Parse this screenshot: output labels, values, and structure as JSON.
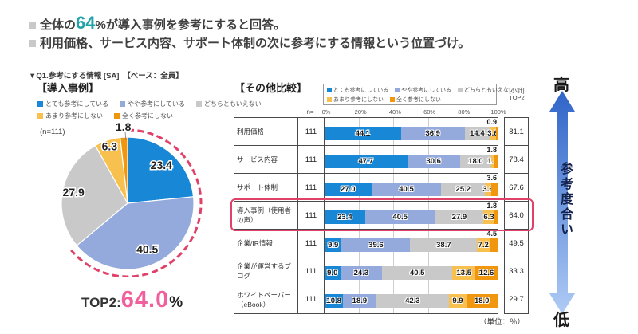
{
  "header": {
    "line1_pre": "全体の",
    "line1_highlight": "64",
    "line1_post": "%が導入事例を参考にすると回答。",
    "line2": "利用価格、サービス内容、サポート体制の次に参考にする情報という位置づけ。",
    "subtitle": "▼Q1.参考にする情報 [SA]　【ベース：全員】"
  },
  "legend_labels": [
    "とても参考にしている",
    "やや参考にしている",
    "どちらともいえない",
    "あまり参考にしない",
    "全く参考にしない"
  ],
  "segment_colors": [
    "#1787D6",
    "#94AADC",
    "#C9C9C9",
    "#F8C04E",
    "#F0960F"
  ],
  "accent": {
    "red": "#E04168",
    "pink": "#F0609C",
    "teal": "#1FA3A8",
    "arrow_top": "#2F64C8",
    "arrow_bottom": "#AFCBF5"
  },
  "pie_section": {
    "title": "【導入事例】",
    "n_label": "(n=111)",
    "top2_prefix": "TOP2:",
    "top2_value": "64.0",
    "top2_suffix": "%"
  },
  "bar_section": {
    "title": "【その他比較】",
    "n_header": "n=",
    "top2_header_line1": "[小計]",
    "top2_header_line2": "TOP2",
    "axis_ticks": [
      "0%",
      "20%",
      "40%",
      "60%",
      "80%",
      "100%"
    ],
    "unit_note": "（単位：％）"
  },
  "arrow": {
    "high": "高",
    "low": "低",
    "label": "参考度合い"
  },
  "chart_data": [
    {
      "type": "pie",
      "title": "導入事例",
      "n": 111,
      "labels": [
        "とても参考にしている",
        "やや参考にしている",
        "どちらともいえない",
        "あまり参考にしない",
        "全く参考にしない"
      ],
      "values": [
        23.4,
        40.5,
        27.9,
        6.3,
        1.8
      ],
      "top2_value": 64.0
    },
    {
      "type": "bar",
      "stacked": true,
      "orientation": "horizontal",
      "title": "その他比較",
      "unit": "%",
      "xlim": [
        0,
        100
      ],
      "categories": [
        "利用価格",
        "サービス内容",
        "サポート体制",
        "導入事例（使用者の声）",
        "企業/IR情報",
        "企業が運営するブログ",
        "ホワイトペーパー（eBook）"
      ],
      "n": [
        111,
        111,
        111,
        111,
        111,
        111,
        111
      ],
      "series": [
        {
          "name": "とても参考にしている",
          "values": [
            44.1,
            47.7,
            27.0,
            23.4,
            9.9,
            9.0,
            10.8
          ]
        },
        {
          "name": "やや参考にしている",
          "values": [
            36.9,
            30.6,
            40.5,
            40.5,
            39.6,
            24.3,
            18.9
          ]
        },
        {
          "name": "どちらともいえない",
          "values": [
            14.4,
            18.0,
            25.2,
            27.9,
            38.7,
            40.5,
            42.3
          ]
        },
        {
          "name": "あまり参考にしない",
          "values": [
            3.6,
            1.8,
            3.6,
            6.3,
            7.2,
            13.5,
            9.9
          ]
        },
        {
          "name": "全く参考にしない",
          "values": [
            0.9,
            1.8,
            3.6,
            1.8,
            4.5,
            12.6,
            18.0
          ]
        }
      ],
      "top2": [
        81.1,
        78.4,
        67.6,
        64.0,
        49.5,
        33.3,
        29.7
      ],
      "highlighted_category": "導入事例（使用者の声）"
    }
  ]
}
